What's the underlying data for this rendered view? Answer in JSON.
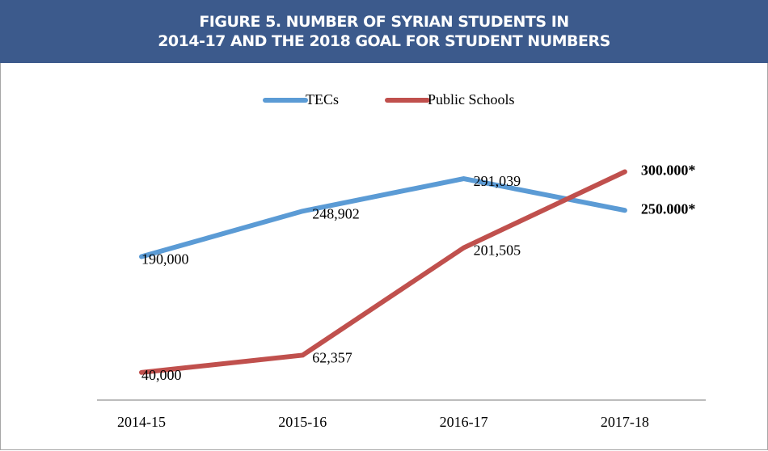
{
  "chart_data": {
    "type": "line",
    "title": "FIGURE 5. NUMBER OF SYRIAN STUDENTS IN\n2014-17 AND THE 2018 GOAL FOR STUDENT NUMBERS",
    "categories": [
      "2014-15",
      "2015-16",
      "2016-17",
      "2017-18"
    ],
    "series": [
      {
        "name": "TECs",
        "color": "#5b9bd5",
        "values": [
          190000,
          248902,
          291039,
          250000
        ],
        "value_labels": [
          "190,000",
          "248,902",
          "291,039",
          "250.000*"
        ]
      },
      {
        "name": "Public Schools",
        "color": "#c0504d",
        "values": [
          40000,
          62357,
          201505,
          300000
        ],
        "value_labels": [
          "40,000",
          "62,357",
          "201,505",
          "300.000*"
        ]
      }
    ],
    "ylim": [
      0,
      350000
    ],
    "legend": "top"
  }
}
